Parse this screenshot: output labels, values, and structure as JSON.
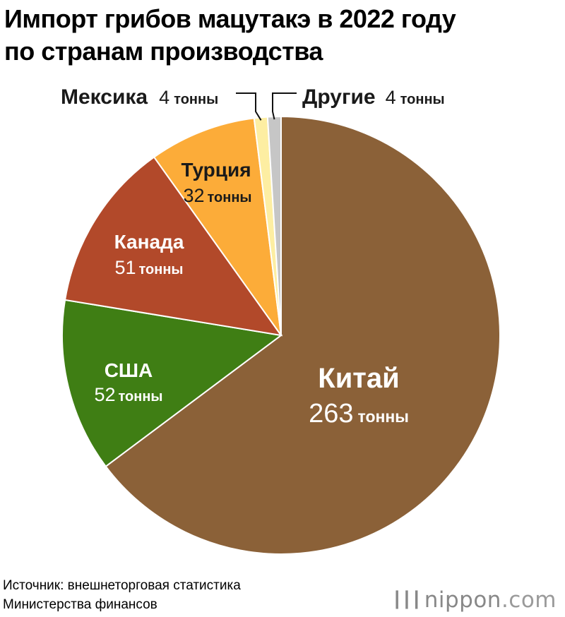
{
  "title_line1": "Импорт грибов мацутакэ в 2022 году",
  "title_line2": "по странам производства",
  "source_line1": "Источник: внешнеторговая статистика",
  "source_line2": "Министерства финансов",
  "logo": {
    "name": "nippon",
    "dot_com": ".com",
    "icon": "bars-icon"
  },
  "colors": {
    "China": "#8b6138",
    "USA": "#3f7e14",
    "Canada": "#b2492a",
    "Turkey": "#fcac39",
    "Mexico": "#fdeea2",
    "Other": "#c6c6c6"
  },
  "chart_data": {
    "type": "pie",
    "title": "Импорт грибов мацутакэ в 2022 году по странам производства",
    "unit": "тонны",
    "start": "12 o'clock, clockwise",
    "slices": [
      {
        "key": "China",
        "label": "Китай",
        "value": 263,
        "value_text": "263",
        "unit_text": "тонны"
      },
      {
        "key": "USA",
        "label": "США",
        "value": 52,
        "value_text": "52",
        "unit_text": "тонны"
      },
      {
        "key": "Canada",
        "label": "Канада",
        "value": 51,
        "value_text": "51",
        "unit_text": "тонны"
      },
      {
        "key": "Turkey",
        "label": "Турция",
        "value": 32,
        "value_text": "32",
        "unit_text": "тонны"
      },
      {
        "key": "Mexico",
        "label": "Мексика",
        "value": 4,
        "value_text": "4",
        "unit_text": "тонны"
      },
      {
        "key": "Other",
        "label": "Другие",
        "value": 4,
        "value_text": "4",
        "unit_text": "тонны"
      }
    ]
  }
}
